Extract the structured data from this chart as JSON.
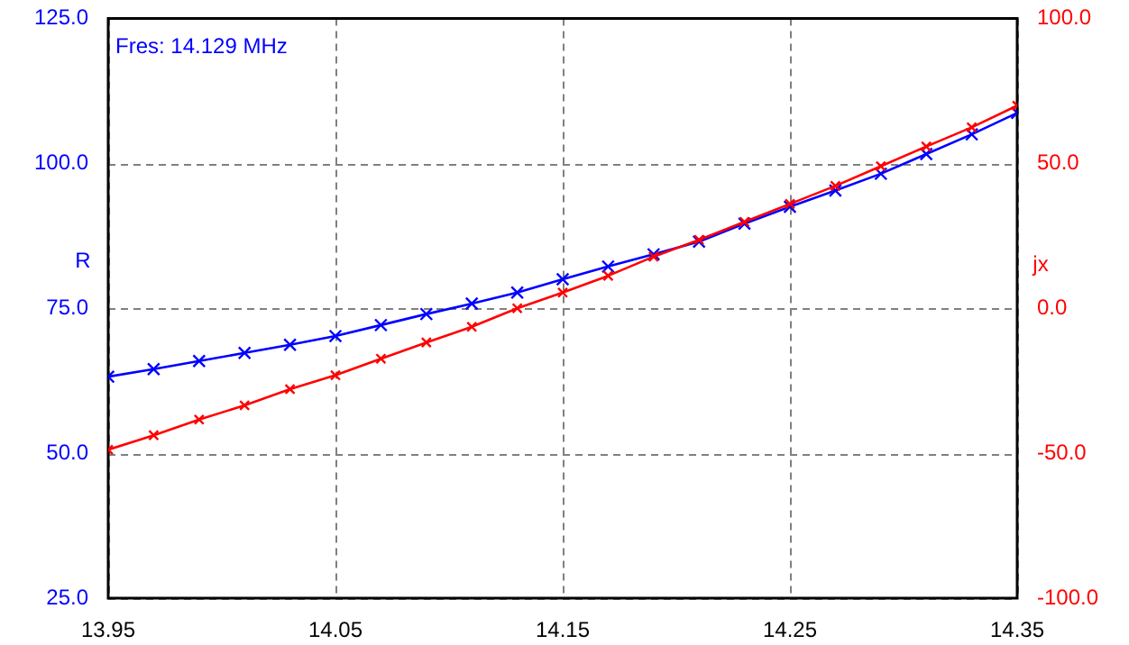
{
  "chart_data": {
    "type": "line",
    "ylabel": "R",
    "y2label": "jx",
    "annotations": [
      "Fres: 14.129 MHz"
    ],
    "x": [
      13.95,
      13.97,
      13.99,
      14.01,
      14.03,
      14.05,
      14.07,
      14.09,
      14.11,
      14.13,
      14.15,
      14.17,
      14.19,
      14.21,
      14.23,
      14.25,
      14.27,
      14.29,
      14.31,
      14.33,
      14.35
    ],
    "series": [
      {
        "color": "#0000ff",
        "values": [
          63.2,
          64.5,
          65.9,
          67.3,
          68.7,
          70.2,
          72.1,
          74.0,
          75.8,
          77.7,
          80.0,
          82.2,
          84.3,
          86.5,
          89.6,
          92.5,
          95.3,
          98.2,
          101.6,
          105.0,
          108.7
        ]
      },
      {
        "color": "#ff0000",
        "axis": "y2",
        "values": [
          -48.8,
          -43.8,
          -38.4,
          -33.5,
          -27.9,
          -23.1,
          -17.4,
          -11.8,
          -6.4,
          0.0,
          5.4,
          11.2,
          17.8,
          23.6,
          29.8,
          36.0,
          42.2,
          49.0,
          55.8,
          62.4,
          69.9
        ]
      }
    ],
    "xlim": [
      13.95,
      14.35
    ],
    "xticks": [
      13.95,
      14.05,
      14.15,
      14.25,
      14.35
    ],
    "ylim": [
      25,
      125
    ],
    "yticks": [
      {
        "value": 25,
        "label": "25.0"
      },
      {
        "value": 50,
        "label": "50.0"
      },
      {
        "value": 75,
        "label": "75.0"
      },
      {
        "value": 100,
        "label": "100.0"
      },
      {
        "value": 125,
        "label": "125.0"
      }
    ],
    "y2lim": [
      -100,
      100
    ],
    "y2ticks": [
      {
        "value": -100,
        "label": "-100.0"
      },
      {
        "value": -50,
        "label": "-50.0"
      },
      {
        "value": 0,
        "label": "0.0"
      },
      {
        "value": 50,
        "label": "50.0"
      },
      {
        "value": 100,
        "label": "100.0"
      }
    ],
    "grid": true,
    "legend": false,
    "marker": "cross",
    "line_style": "solid"
  }
}
